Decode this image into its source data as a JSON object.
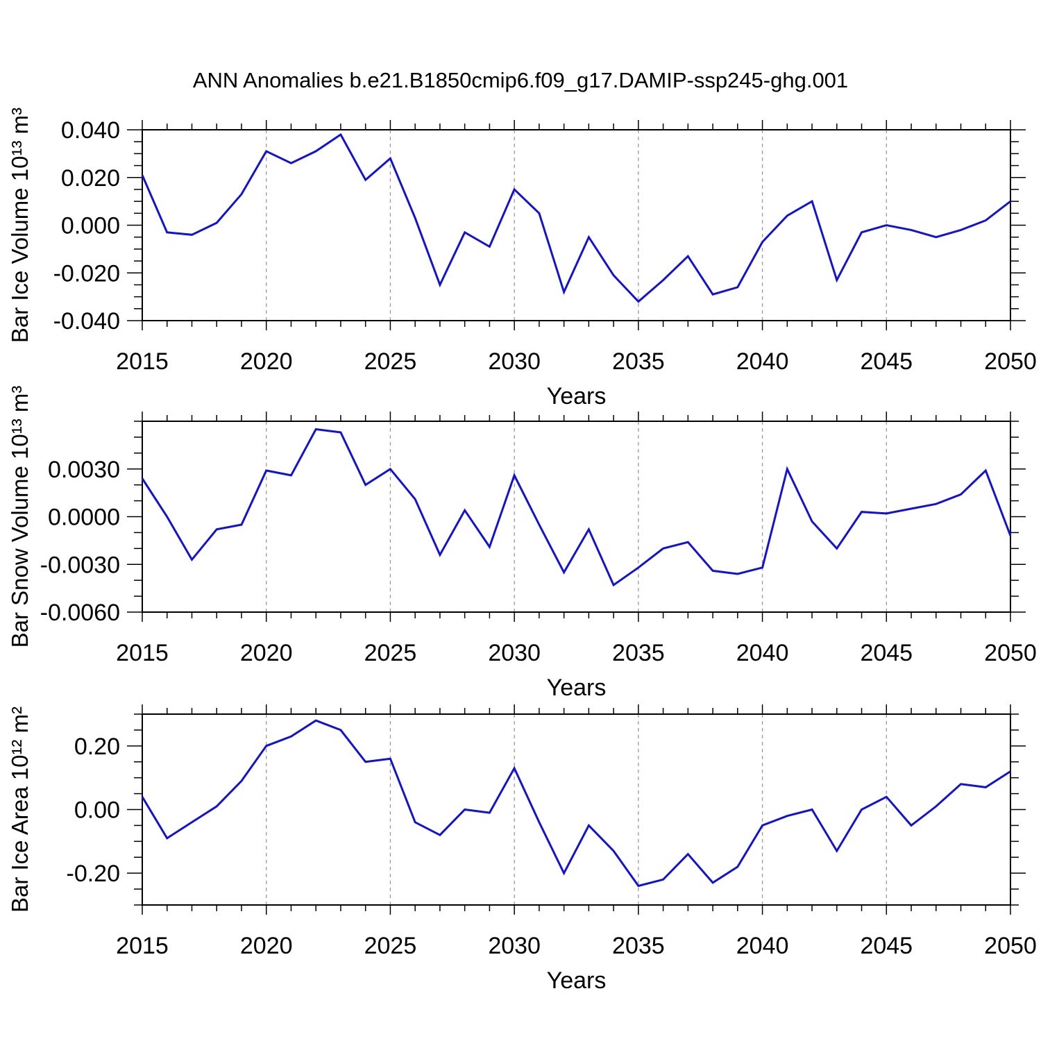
{
  "title": "ANN Anomalies b.e21.B1850cmip6.f09_g17.DAMIP-ssp245-ghg.001",
  "colors": {
    "line": "#1212d6",
    "grid": "#999999",
    "frame": "#000000",
    "background": "#ffffff",
    "text": "#000000"
  },
  "chart_data": [
    {
      "type": "line",
      "name": "ice-volume",
      "ylabel": "Bar Ice Volume 10¹³ m³",
      "xlabel": "Years",
      "x": [
        2015,
        2016,
        2017,
        2018,
        2019,
        2020,
        2021,
        2022,
        2023,
        2024,
        2025,
        2026,
        2027,
        2028,
        2029,
        2030,
        2031,
        2032,
        2033,
        2034,
        2035,
        2036,
        2037,
        2038,
        2039,
        2040,
        2041,
        2042,
        2043,
        2044,
        2045,
        2046,
        2047,
        2048,
        2049,
        2050
      ],
      "values": [
        0.021,
        -0.003,
        -0.004,
        0.001,
        0.013,
        0.031,
        0.026,
        0.031,
        0.038,
        0.019,
        0.028,
        0.003,
        -0.025,
        -0.003,
        -0.009,
        0.015,
        0.005,
        -0.028,
        -0.005,
        -0.021,
        -0.032,
        -0.023,
        -0.013,
        -0.029,
        -0.026,
        -0.007,
        0.004,
        0.01,
        -0.023,
        -0.003,
        0.0,
        -0.002,
        -0.005,
        -0.002,
        0.002,
        0.01
      ],
      "ylim": [
        -0.04,
        0.04
      ],
      "yticks": [
        0.04,
        0.02,
        0.0,
        -0.02,
        -0.04
      ],
      "ytick_labels": [
        "0.040",
        "0.020",
        "0.000",
        "-0.020",
        "-0.040"
      ],
      "minor_y_step": 0.005,
      "xlim": [
        2015,
        2050
      ],
      "xticks": [
        2015,
        2020,
        2025,
        2030,
        2035,
        2040,
        2045,
        2050
      ],
      "xtick_labels": [
        "2015",
        "2020",
        "2025",
        "2030",
        "2035",
        "2040",
        "2045",
        "2050"
      ],
      "minor_x_step": 1,
      "grid_x": [
        2020,
        2025,
        2030,
        2035,
        2040,
        2045
      ],
      "grid_style": "vertical-dashed",
      "legend": "none"
    },
    {
      "type": "line",
      "name": "snow-volume",
      "ylabel": "Bar Snow Volume 10¹³ m³",
      "xlabel": "Years",
      "x": [
        2015,
        2016,
        2017,
        2018,
        2019,
        2020,
        2021,
        2022,
        2023,
        2024,
        2025,
        2026,
        2027,
        2028,
        2029,
        2030,
        2031,
        2032,
        2033,
        2034,
        2035,
        2036,
        2037,
        2038,
        2039,
        2040,
        2041,
        2042,
        2043,
        2044,
        2045,
        2046,
        2047,
        2048,
        2049,
        2050
      ],
      "values": [
        0.0024,
        0.0,
        -0.0027,
        -0.0008,
        -0.0005,
        0.0029,
        0.0026,
        0.0055,
        0.0053,
        0.002,
        0.003,
        0.0011,
        -0.0024,
        0.0004,
        -0.0019,
        0.0026,
        -0.0005,
        -0.0035,
        -0.0008,
        -0.0043,
        -0.0032,
        -0.002,
        -0.0016,
        -0.0034,
        -0.0036,
        -0.0032,
        0.003,
        -0.0003,
        -0.002,
        0.0003,
        0.0002,
        0.0005,
        0.0008,
        0.0014,
        0.0029,
        -0.0012
      ],
      "ylim": [
        -0.006,
        0.006
      ],
      "yticks": [
        0.003,
        0.0,
        -0.003,
        -0.006
      ],
      "ytick_labels": [
        "0.0030",
        "0.0000",
        "-0.0030",
        "-0.0060"
      ],
      "minor_y_step": 0.001,
      "xlim": [
        2015,
        2050
      ],
      "xticks": [
        2015,
        2020,
        2025,
        2030,
        2035,
        2040,
        2045,
        2050
      ],
      "xtick_labels": [
        "2015",
        "2020",
        "2025",
        "2030",
        "2035",
        "2040",
        "2045",
        "2050"
      ],
      "minor_x_step": 1,
      "grid_x": [
        2020,
        2025,
        2030,
        2035,
        2040,
        2045
      ],
      "grid_style": "vertical-dashed",
      "legend": "none"
    },
    {
      "type": "line",
      "name": "ice-area",
      "ylabel": "Bar Ice Area 10¹² m²",
      "xlabel": "Years",
      "x": [
        2015,
        2016,
        2017,
        2018,
        2019,
        2020,
        2021,
        2022,
        2023,
        2024,
        2025,
        2026,
        2027,
        2028,
        2029,
        2030,
        2031,
        2032,
        2033,
        2034,
        2035,
        2036,
        2037,
        2038,
        2039,
        2040,
        2041,
        2042,
        2043,
        2044,
        2045,
        2046,
        2047,
        2048,
        2049,
        2050
      ],
      "values": [
        0.04,
        -0.09,
        -0.04,
        0.01,
        0.09,
        0.2,
        0.23,
        0.28,
        0.25,
        0.15,
        0.16,
        -0.04,
        -0.08,
        0.0,
        -0.01,
        0.13,
        -0.04,
        -0.2,
        -0.05,
        -0.13,
        -0.24,
        -0.22,
        -0.14,
        -0.23,
        -0.18,
        -0.05,
        -0.02,
        0.0,
        -0.13,
        0.0,
        0.04,
        -0.05,
        0.01,
        0.08,
        0.07,
        0.12
      ],
      "ylim": [
        -0.3,
        0.3
      ],
      "yticks": [
        0.2,
        0.0,
        -0.2
      ],
      "ytick_labels": [
        "0.20",
        "0.00",
        "-0.20"
      ],
      "minor_y_step": 0.05,
      "xlim": [
        2015,
        2050
      ],
      "xticks": [
        2015,
        2020,
        2025,
        2030,
        2035,
        2040,
        2045,
        2050
      ],
      "xtick_labels": [
        "2015",
        "2020",
        "2025",
        "2030",
        "2035",
        "2040",
        "2045",
        "2050"
      ],
      "minor_x_step": 1,
      "grid_x": [
        2020,
        2025,
        2030,
        2035,
        2040,
        2045
      ],
      "grid_style": "vertical-dashed",
      "legend": "none"
    }
  ]
}
